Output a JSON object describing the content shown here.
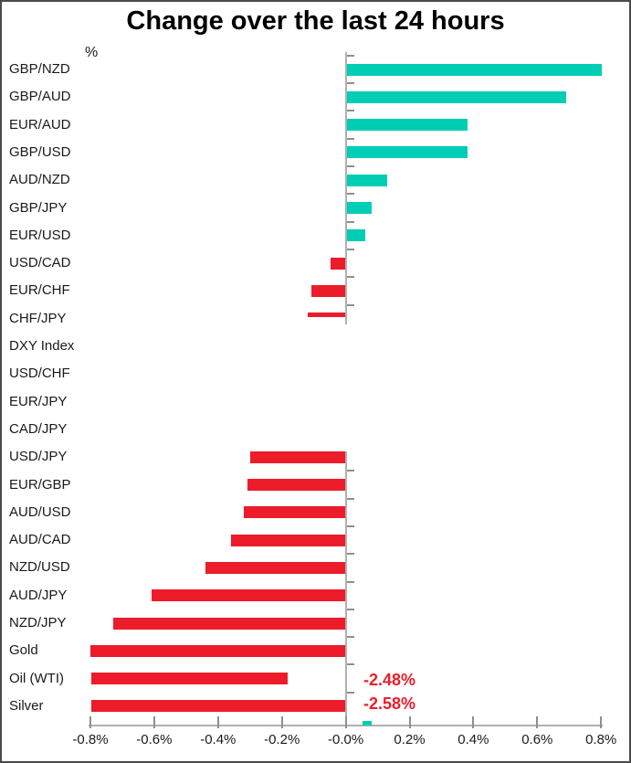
{
  "title": "Change over the last 24 hours",
  "y_axis_unit_label": "%",
  "colors": {
    "positive_bar": "#00CEB4",
    "negative_bar": "#ED1C2B",
    "annotation_text": "#ED1C2B",
    "axis_line": "#b0b0b0",
    "tick": "#8f8f8f",
    "text": "#1a1a1a",
    "frame_border": "#4a4a4a",
    "background": "#ffffff"
  },
  "chart_data": {
    "type": "bar",
    "orientation": "horizontal",
    "title": "Change over the last 24 hours",
    "unit": "%",
    "xlim": [
      -0.8,
      0.8
    ],
    "x_tick_labels": [
      "-0.8%",
      "-0.6%",
      "-0.4%",
      "-0.2%",
      "-0.0%",
      "0.2%",
      "0.4%",
      "0.6%",
      "0.8%"
    ],
    "grid": false,
    "legend": false,
    "categories": [
      "GBP/NZD",
      "GBP/AUD",
      "EUR/AUD",
      "GBP/USD",
      "AUD/NZD",
      "GBP/JPY",
      "EUR/USD",
      "USD/CAD",
      "EUR/CHF",
      "CHF/JPY",
      "DXY Index",
      "USD/CHF",
      "EUR/JPY",
      "CAD/JPY",
      "USD/JPY",
      "EUR/GBP",
      "AUD/USD",
      "AUD/CAD",
      "NZD/USD",
      "AUD/JPY",
      "NZD/JPY",
      "Gold",
      "Oil (WTI)",
      "Silver"
    ],
    "values": [
      0.8,
      0.69,
      0.38,
      0.38,
      0.13,
      0.08,
      0.06,
      -0.05,
      -0.11,
      -0.12,
      0.0,
      0.0,
      0.0,
      0.0,
      -0.3,
      -0.31,
      -0.32,
      -0.36,
      -0.44,
      -0.61,
      -0.73,
      -0.8,
      -2.48,
      -2.58
    ],
    "clipped_bars": [
      {
        "category": "Oil (WTI)",
        "true_value": -2.48,
        "drawn_from_pct": -0.797,
        "drawn_to_pct": -0.182
      },
      {
        "category": "Silver",
        "true_value": -2.58,
        "drawn_from_pct": -0.797,
        "drawn_to_pct": -0.001
      }
    ],
    "thin_bar_categories": [
      "CHF/JPY"
    ],
    "annotations": [
      {
        "text": "-2.48%",
        "category": "Oil (WTI)"
      },
      {
        "text": "-2.58%",
        "category": "Silver"
      }
    ],
    "stray_marker": {
      "color": "#00CEB4",
      "from_pct": 0.052,
      "to_pct": 0.08
    }
  }
}
